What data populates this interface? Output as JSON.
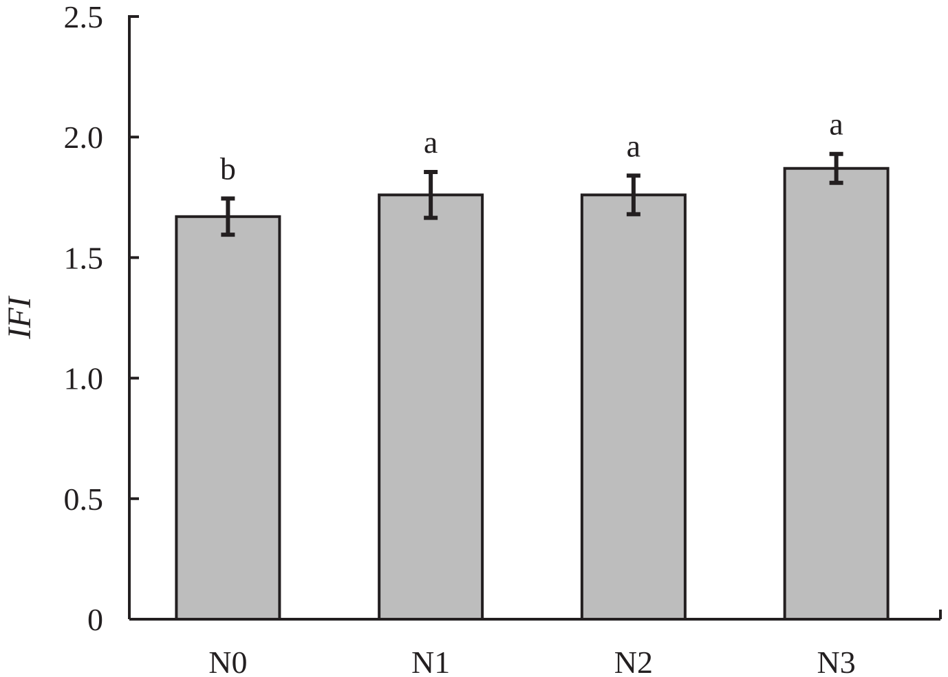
{
  "chart_data": {
    "type": "bar",
    "title": "",
    "xlabel": "",
    "ylabel": "IFI",
    "categories": [
      "N0",
      "N1",
      "N2",
      "N3"
    ],
    "values": [
      1.67,
      1.76,
      1.76,
      1.87
    ],
    "errors": [
      0.075,
      0.095,
      0.08,
      0.06
    ],
    "significance": [
      "b",
      "a",
      "a",
      "a"
    ],
    "ylim": [
      0,
      2.5
    ],
    "yticks": [
      0,
      0.5,
      1.0,
      1.5,
      2.0,
      2.5
    ],
    "ytick_labels": [
      "0",
      "0.5",
      "1.0",
      "1.5",
      "2.0",
      "2.5"
    ],
    "bar_color": "#bdbdbd",
    "edge_color": "#231f20",
    "grid": false,
    "legend": "none"
  }
}
